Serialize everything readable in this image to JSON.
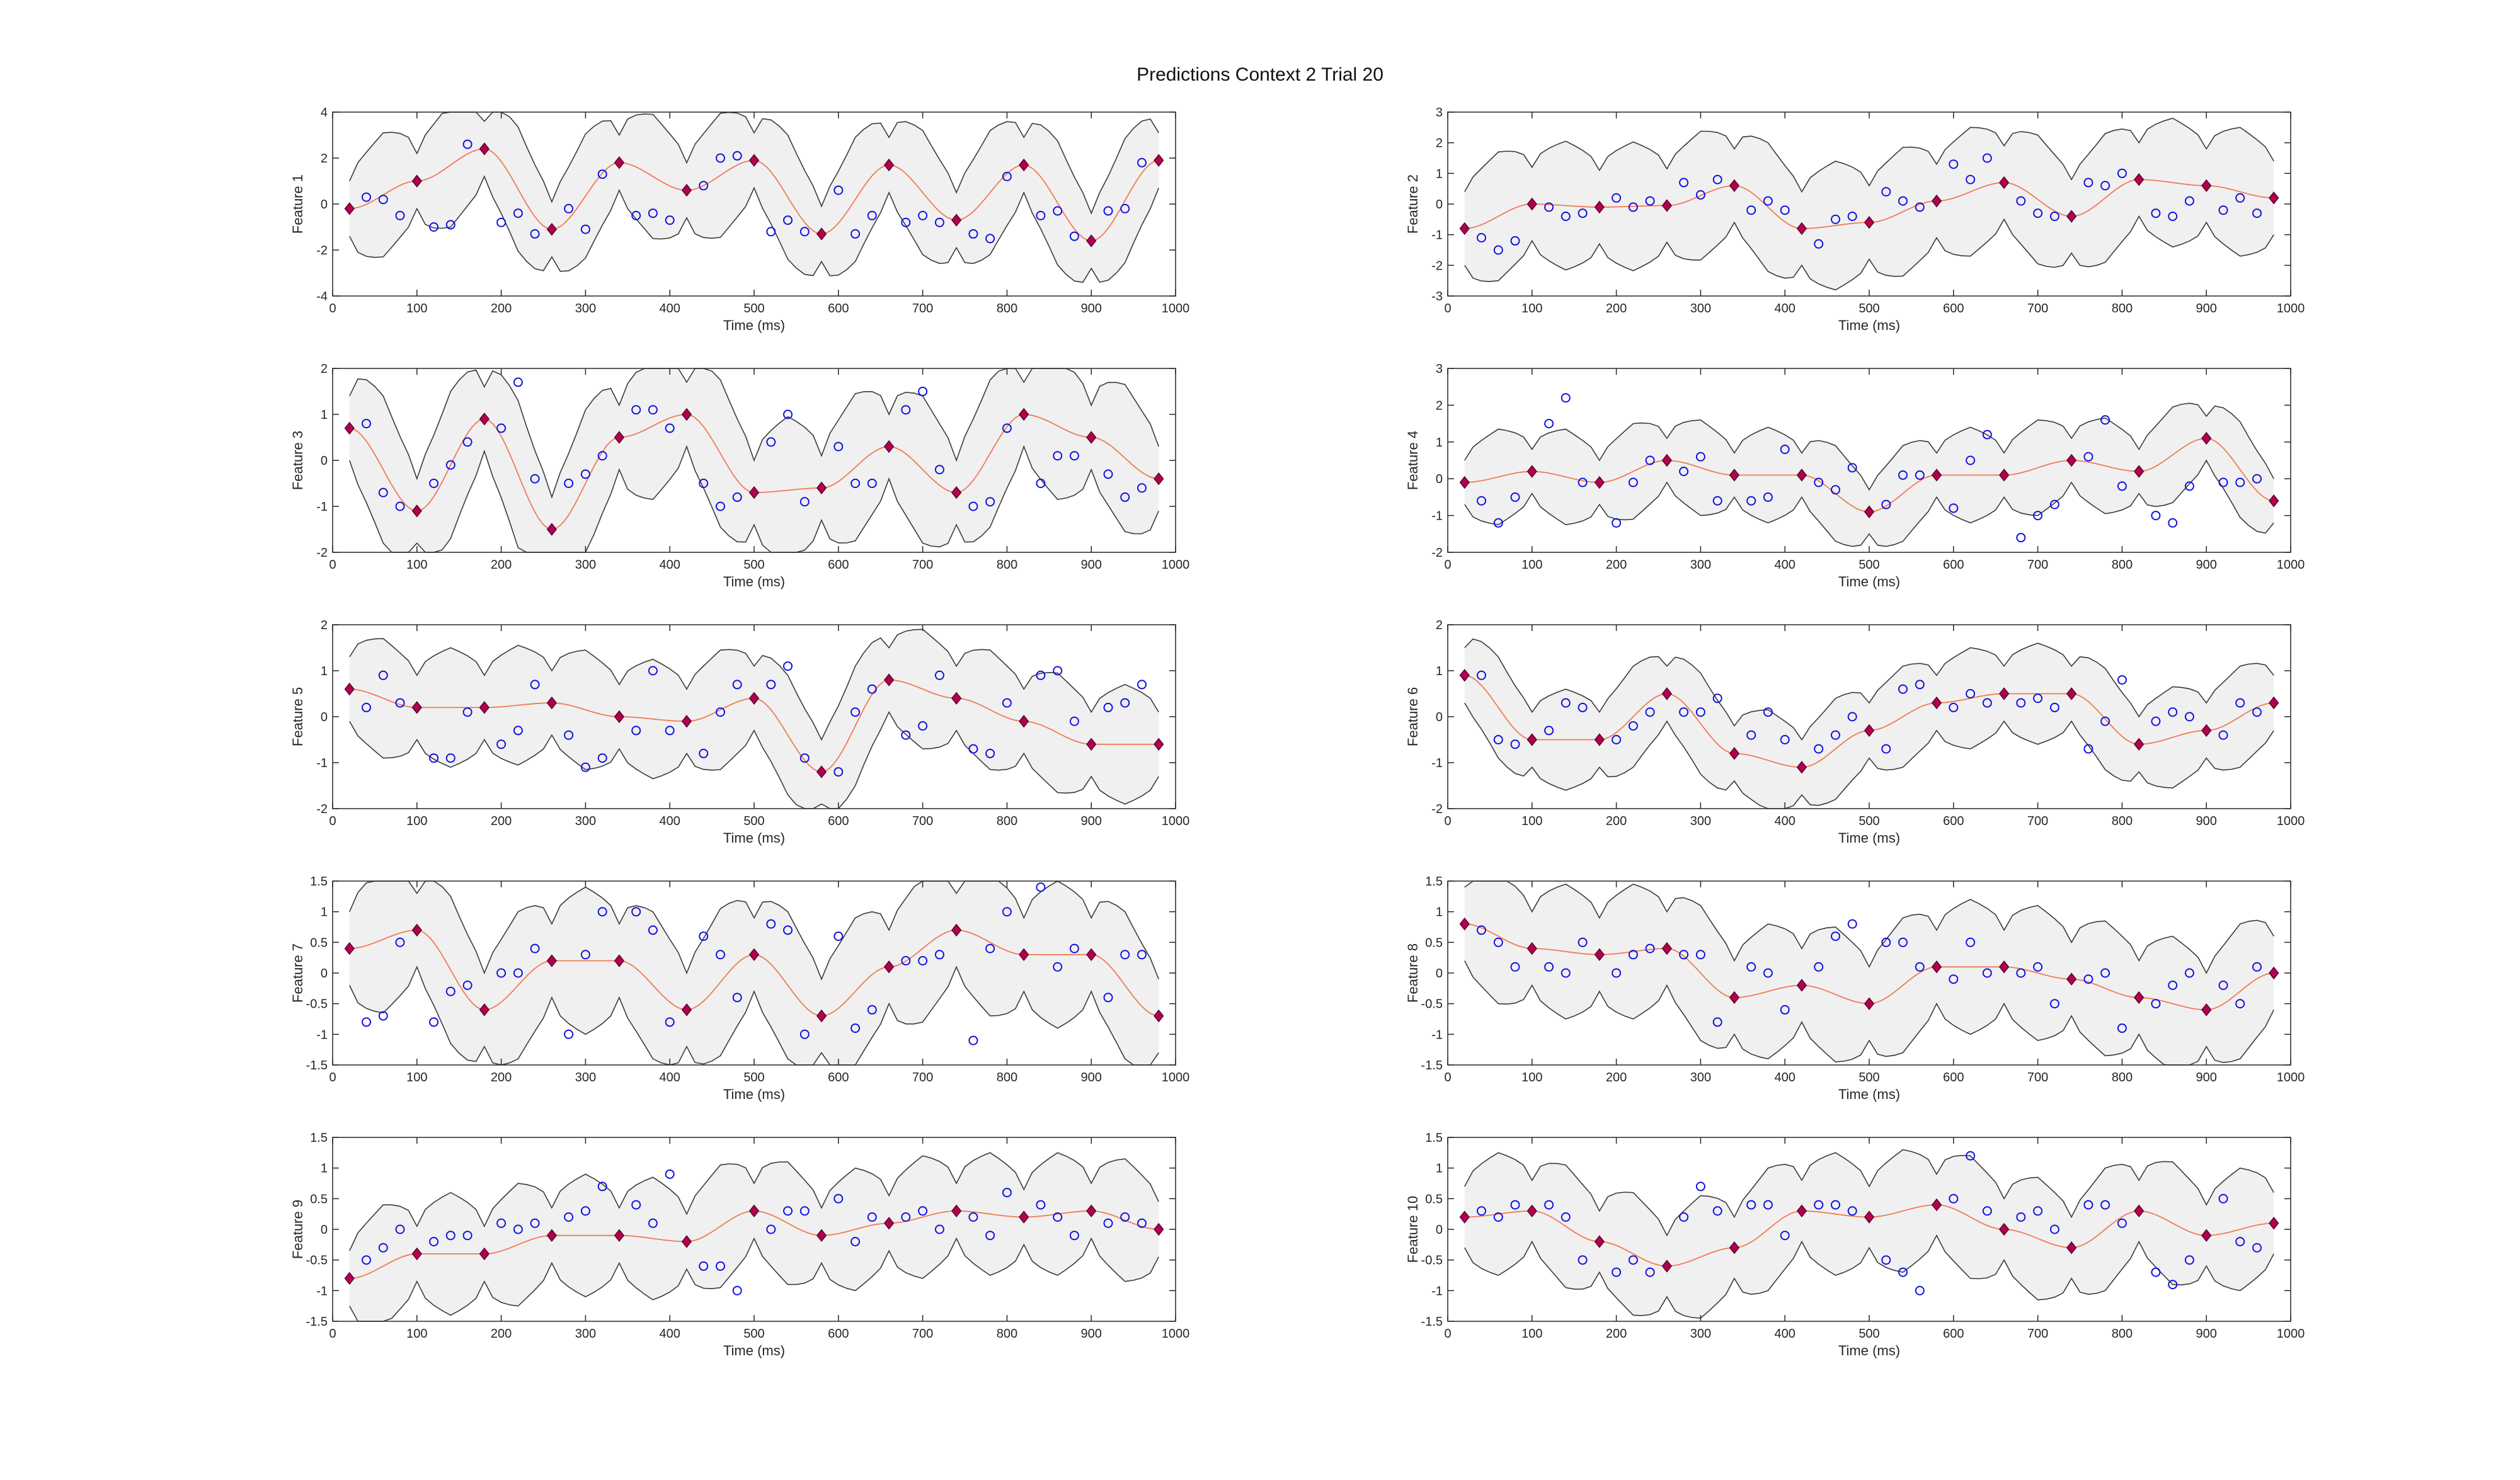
{
  "title": "Predictions Context 2 Trial 20",
  "colors": {
    "band_fill": "#f0f0f0",
    "band_edge": "#3a3a3a",
    "mean_line": "#f07a55",
    "observed": "#1010e0",
    "marker_fill": "#b3004d",
    "marker_edge": "#5a0030",
    "axes": "#262626"
  },
  "chart_data": [
    {
      "type": "line",
      "ylabel": "Feature 1",
      "xlabel": "Time (ms)",
      "xlim": [
        0,
        1000
      ],
      "ylim": [
        -4,
        4
      ],
      "xticks": [
        0,
        100,
        200,
        300,
        400,
        500,
        600,
        700,
        800,
        900,
        1000
      ],
      "yticks": [
        -4,
        -2,
        0,
        2,
        4
      ],
      "band_halfwidth_peak": 2.7,
      "band_halfwidth_trough": 1.2,
      "anchor_x": [
        20,
        100,
        180,
        260,
        340,
        420,
        500,
        580,
        660,
        740,
        820,
        900,
        980
      ],
      "anchors": [
        -0.2,
        1.0,
        2.4,
        -1.1,
        1.8,
        0.6,
        1.9,
        -1.3,
        1.7,
        -0.7,
        1.7,
        -1.6,
        1.9
      ],
      "obs_x": [
        40,
        60,
        80,
        120,
        140,
        160,
        200,
        220,
        240,
        280,
        300,
        320,
        360,
        380,
        400,
        440,
        460,
        480,
        520,
        540,
        560,
        600,
        620,
        640,
        680,
        700,
        720,
        760,
        780,
        800,
        840,
        860,
        880,
        920,
        940,
        960
      ],
      "obs_y": [
        0.3,
        0.2,
        -0.5,
        -1.0,
        -0.9,
        2.6,
        -0.8,
        -0.4,
        -1.3,
        -0.2,
        -1.1,
        1.3,
        -0.5,
        -0.4,
        -0.7,
        0.8,
        2.0,
        2.1,
        -1.2,
        -0.7,
        -1.2,
        0.6,
        -1.3,
        -0.5,
        -0.8,
        -0.5,
        -0.8,
        -1.3,
        -1.5,
        1.2,
        -0.5,
        -0.3,
        -1.4,
        -0.3,
        -0.2,
        1.8
      ]
    },
    {
      "type": "line",
      "ylabel": "Feature 2",
      "xlabel": "Time (ms)",
      "xlim": [
        0,
        1000
      ],
      "ylim": [
        -3,
        3
      ],
      "xticks": [
        0,
        100,
        200,
        300,
        400,
        500,
        600,
        700,
        800,
        900,
        1000
      ],
      "yticks": [
        -3,
        -2,
        -1,
        0,
        1,
        2,
        3
      ],
      "band_halfwidth_peak": 2.1,
      "band_halfwidth_trough": 1.2,
      "anchor_x": [
        20,
        100,
        180,
        260,
        340,
        420,
        500,
        580,
        660,
        740,
        820,
        900,
        980
      ],
      "anchors": [
        -0.8,
        0.0,
        -0.1,
        -0.05,
        0.6,
        -0.8,
        -0.6,
        0.1,
        0.7,
        -0.4,
        0.8,
        0.6,
        0.2
      ],
      "obs_x": [
        40,
        60,
        80,
        120,
        140,
        160,
        200,
        220,
        240,
        280,
        300,
        320,
        360,
        380,
        400,
        440,
        460,
        480,
        520,
        540,
        560,
        600,
        620,
        640,
        680,
        700,
        720,
        760,
        780,
        800,
        840,
        860,
        880,
        920,
        940,
        960
      ],
      "obs_y": [
        -1.1,
        -1.5,
        -1.2,
        -0.1,
        -0.4,
        -0.3,
        0.2,
        -0.1,
        0.1,
        0.7,
        0.3,
        0.8,
        -0.2,
        0.1,
        -0.2,
        -1.3,
        -0.5,
        -0.4,
        0.4,
        0.1,
        -0.1,
        1.3,
        0.8,
        1.5,
        0.1,
        -0.3,
        -0.4,
        0.7,
        0.6,
        1.0,
        -0.3,
        -0.4,
        0.1,
        -0.2,
        0.2,
        -0.3
      ]
    },
    {
      "type": "line",
      "ylabel": "Feature 3",
      "xlabel": "Time (ms)",
      "xlim": [
        0,
        1000
      ],
      "ylim": [
        -2,
        2
      ],
      "xticks": [
        0,
        100,
        200,
        300,
        400,
        500,
        600,
        700,
        800,
        900,
        1000
      ],
      "yticks": [
        -2,
        -1,
        0,
        1,
        2
      ],
      "band_halfwidth_peak": 1.6,
      "band_halfwidth_trough": 0.7,
      "anchor_x": [
        20,
        100,
        180,
        260,
        340,
        420,
        500,
        580,
        660,
        740,
        820,
        900,
        980
      ],
      "anchors": [
        0.7,
        -1.1,
        0.9,
        -1.5,
        0.5,
        1.0,
        -0.7,
        -0.6,
        0.3,
        -0.7,
        1.0,
        0.5,
        -0.4
      ],
      "obs_x": [
        40,
        60,
        80,
        120,
        140,
        160,
        200,
        220,
        240,
        280,
        300,
        320,
        360,
        380,
        400,
        440,
        460,
        480,
        520,
        540,
        560,
        600,
        620,
        640,
        680,
        700,
        720,
        760,
        780,
        800,
        840,
        860,
        880,
        920,
        940,
        960
      ],
      "obs_y": [
        0.8,
        -0.7,
        -1.0,
        -0.5,
        -0.1,
        0.4,
        0.7,
        1.7,
        -0.4,
        -0.5,
        -0.3,
        0.1,
        1.1,
        1.1,
        0.7,
        -0.5,
        -1.0,
        -0.8,
        0.4,
        1.0,
        -0.9,
        0.3,
        -0.5,
        -0.5,
        1.1,
        1.5,
        -0.2,
        -1.0,
        -0.9,
        0.7,
        -0.5,
        0.1,
        0.1,
        -0.3,
        -0.8,
        -0.6
      ]
    },
    {
      "type": "line",
      "ylabel": "Feature 4",
      "xlabel": "Time (ms)",
      "xlim": [
        0,
        1000
      ],
      "ylim": [
        -2,
        3
      ],
      "xticks": [
        0,
        100,
        200,
        300,
        400,
        500,
        600,
        700,
        800,
        900,
        1000
      ],
      "yticks": [
        -2,
        -1,
        0,
        1,
        2,
        3
      ],
      "band_halfwidth_peak": 1.3,
      "band_halfwidth_trough": 0.6,
      "anchor_x": [
        20,
        100,
        180,
        260,
        340,
        420,
        500,
        580,
        660,
        740,
        820,
        900,
        980
      ],
      "anchors": [
        -0.1,
        0.2,
        -0.1,
        0.5,
        0.1,
        0.1,
        -0.9,
        0.1,
        0.1,
        0.5,
        0.2,
        1.1,
        -0.6
      ],
      "obs_x": [
        40,
        60,
        80,
        120,
        140,
        160,
        200,
        220,
        240,
        280,
        300,
        320,
        360,
        380,
        400,
        440,
        460,
        480,
        520,
        540,
        560,
        600,
        620,
        640,
        680,
        700,
        720,
        760,
        780,
        800,
        840,
        860,
        880,
        920,
        940,
        960
      ],
      "obs_y": [
        -0.6,
        -1.2,
        -0.5,
        1.5,
        2.2,
        -0.1,
        -1.2,
        -0.1,
        0.5,
        0.2,
        0.6,
        -0.6,
        -0.6,
        -0.5,
        0.8,
        -0.1,
        -0.3,
        0.3,
        -0.7,
        0.1,
        0.1,
        -0.8,
        0.5,
        1.2,
        -1.6,
        -1.0,
        -0.7,
        0.6,
        1.6,
        -0.2,
        -1.0,
        -1.2,
        -0.2,
        -0.1,
        -0.1,
        0.0
      ]
    },
    {
      "type": "line",
      "ylabel": "Feature 5",
      "xlabel": "Time (ms)",
      "xlim": [
        0,
        1000
      ],
      "ylim": [
        -2,
        2
      ],
      "xticks": [
        0,
        100,
        200,
        300,
        400,
        500,
        600,
        700,
        800,
        900,
        1000
      ],
      "yticks": [
        -2,
        -1,
        0,
        1,
        2
      ],
      "band_halfwidth_peak": 1.3,
      "band_halfwidth_trough": 0.7,
      "anchor_x": [
        20,
        100,
        180,
        260,
        340,
        420,
        500,
        580,
        660,
        740,
        820,
        900,
        980
      ],
      "anchors": [
        0.6,
        0.2,
        0.2,
        0.3,
        0.0,
        -0.1,
        0.4,
        -1.2,
        0.8,
        0.4,
        -0.1,
        -0.6,
        -0.6
      ],
      "obs_x": [
        40,
        60,
        80,
        120,
        140,
        160,
        200,
        220,
        240,
        280,
        300,
        320,
        360,
        380,
        400,
        440,
        460,
        480,
        520,
        540,
        560,
        600,
        620,
        640,
        680,
        700,
        720,
        760,
        780,
        800,
        840,
        860,
        880,
        920,
        940,
        960
      ],
      "obs_y": [
        0.2,
        0.9,
        0.3,
        -0.9,
        -0.9,
        0.1,
        -0.6,
        -0.3,
        0.7,
        -0.4,
        -1.1,
        -0.9,
        -0.3,
        1.0,
        -0.3,
        -0.8,
        0.1,
        0.7,
        0.7,
        1.1,
        -0.9,
        -1.2,
        0.1,
        0.6,
        -0.4,
        -0.2,
        0.9,
        -0.7,
        -0.8,
        0.3,
        0.9,
        1.0,
        -0.1,
        0.2,
        0.3,
        0.7
      ]
    },
    {
      "type": "line",
      "ylabel": "Feature 6",
      "xlabel": "Time (ms)",
      "xlim": [
        0,
        1000
      ],
      "ylim": [
        -2,
        2
      ],
      "xticks": [
        0,
        100,
        200,
        300,
        400,
        500,
        600,
        700,
        800,
        900,
        1000
      ],
      "yticks": [
        -2,
        -1,
        0,
        1,
        2
      ],
      "band_halfwidth_peak": 1.1,
      "band_halfwidth_trough": 0.6,
      "anchor_x": [
        20,
        100,
        180,
        260,
        340,
        420,
        500,
        580,
        660,
        740,
        820,
        900,
        980
      ],
      "anchors": [
        0.9,
        -0.5,
        -0.5,
        0.5,
        -0.8,
        -1.1,
        -0.3,
        0.3,
        0.5,
        0.5,
        -0.6,
        -0.3,
        0.3
      ],
      "obs_x": [
        40,
        60,
        80,
        120,
        140,
        160,
        200,
        220,
        240,
        280,
        300,
        320,
        360,
        380,
        400,
        440,
        460,
        480,
        520,
        540,
        560,
        600,
        620,
        640,
        680,
        700,
        720,
        760,
        780,
        800,
        840,
        860,
        880,
        920,
        940,
        960
      ],
      "obs_y": [
        0.9,
        -0.5,
        -0.6,
        -0.3,
        0.3,
        0.2,
        -0.5,
        -0.2,
        0.1,
        0.1,
        0.1,
        0.4,
        -0.4,
        0.1,
        -0.5,
        -0.7,
        -0.4,
        0.0,
        -0.7,
        0.6,
        0.7,
        0.2,
        0.5,
        0.3,
        0.3,
        0.4,
        0.2,
        -0.7,
        -0.1,
        0.8,
        -0.1,
        0.1,
        0.0,
        -0.4,
        0.3,
        0.1
      ]
    },
    {
      "type": "line",
      "ylabel": "Feature 7",
      "xlabel": "Time (ms)",
      "xlim": [
        0,
        1000
      ],
      "ylim": [
        -1.5,
        1.5
      ],
      "xticks": [
        0,
        100,
        200,
        300,
        400,
        500,
        600,
        700,
        800,
        900,
        1000
      ],
      "yticks": [
        -1.5,
        -1,
        -0.5,
        0,
        0.5,
        1,
        1.5
      ],
      "band_halfwidth_peak": 1.2,
      "band_halfwidth_trough": 0.6,
      "anchor_x": [
        20,
        100,
        180,
        260,
        340,
        420,
        500,
        580,
        660,
        740,
        820,
        900,
        980
      ],
      "anchors": [
        0.4,
        0.7,
        -0.6,
        0.2,
        0.2,
        -0.6,
        0.3,
        -0.7,
        0.1,
        0.7,
        0.3,
        0.3,
        -0.7
      ],
      "obs_x": [
        40,
        60,
        80,
        120,
        140,
        160,
        200,
        220,
        240,
        280,
        300,
        320,
        360,
        380,
        400,
        440,
        460,
        480,
        520,
        540,
        560,
        600,
        620,
        640,
        680,
        700,
        720,
        760,
        780,
        800,
        840,
        860,
        880,
        920,
        940,
        960
      ],
      "obs_y": [
        -0.8,
        -0.7,
        0.5,
        -0.8,
        -0.3,
        -0.2,
        0.0,
        0.0,
        0.4,
        -1.0,
        0.3,
        1.0,
        1.0,
        0.7,
        -0.8,
        0.6,
        0.3,
        -0.4,
        0.8,
        0.7,
        -1.0,
        0.6,
        -0.9,
        -0.6,
        0.2,
        0.2,
        0.3,
        -1.1,
        0.4,
        1.0,
        1.4,
        0.1,
        0.4,
        -0.4,
        0.3,
        0.3
      ]
    },
    {
      "type": "line",
      "ylabel": "Feature 8",
      "xlabel": "Time (ms)",
      "xlim": [
        0,
        1000
      ],
      "ylim": [
        -1.5,
        1.5
      ],
      "xticks": [
        0,
        100,
        200,
        300,
        400,
        500,
        600,
        700,
        800,
        900,
        1000
      ],
      "yticks": [
        -1.5,
        -1,
        -0.5,
        0,
        0.5,
        1,
        1.5
      ],
      "band_halfwidth_peak": 1.1,
      "band_halfwidth_trough": 0.6,
      "anchor_x": [
        20,
        100,
        180,
        260,
        340,
        420,
        500,
        580,
        660,
        740,
        820,
        900,
        980
      ],
      "anchors": [
        0.8,
        0.4,
        0.3,
        0.4,
        -0.4,
        -0.2,
        -0.5,
        0.1,
        0.1,
        -0.1,
        -0.4,
        -0.6,
        0.0
      ],
      "obs_x": [
        40,
        60,
        80,
        120,
        140,
        160,
        200,
        220,
        240,
        280,
        300,
        320,
        360,
        380,
        400,
        440,
        460,
        480,
        520,
        540,
        560,
        600,
        620,
        640,
        680,
        700,
        720,
        760,
        780,
        800,
        840,
        860,
        880,
        920,
        940,
        960
      ],
      "obs_y": [
        0.7,
        0.5,
        0.1,
        0.1,
        0.0,
        0.5,
        0.0,
        0.3,
        0.4,
        0.3,
        0.3,
        -0.8,
        0.1,
        0.0,
        -0.6,
        0.1,
        0.6,
        0.8,
        0.5,
        0.5,
        0.1,
        -0.1,
        0.5,
        0.0,
        0.0,
        0.1,
        -0.5,
        -0.1,
        0.0,
        -0.9,
        -0.5,
        -0.2,
        0.0,
        -0.2,
        -0.5,
        0.1
      ]
    },
    {
      "type": "line",
      "ylabel": "Feature 9",
      "xlabel": "Time (ms)",
      "xlim": [
        0,
        1000
      ],
      "ylim": [
        -1.5,
        1.5
      ],
      "xticks": [
        0,
        100,
        200,
        300,
        400,
        500,
        600,
        700,
        800,
        900,
        1000
      ],
      "yticks": [
        -1.5,
        -1,
        -0.5,
        0,
        0.5,
        1,
        1.5
      ],
      "band_halfwidth_peak": 1.0,
      "band_halfwidth_trough": 0.45,
      "anchor_x": [
        20,
        100,
        180,
        260,
        340,
        420,
        500,
        580,
        660,
        740,
        820,
        900,
        980
      ],
      "anchors": [
        -0.8,
        -0.4,
        -0.4,
        -0.1,
        -0.1,
        -0.2,
        0.3,
        -0.1,
        0.1,
        0.3,
        0.2,
        0.3,
        0.0
      ],
      "obs_x": [
        40,
        60,
        80,
        120,
        140,
        160,
        200,
        220,
        240,
        280,
        300,
        320,
        360,
        380,
        400,
        440,
        460,
        480,
        520,
        540,
        560,
        600,
        620,
        640,
        680,
        700,
        720,
        760,
        780,
        800,
        840,
        860,
        880,
        920,
        940,
        960
      ],
      "obs_y": [
        -0.5,
        -0.3,
        0.0,
        -0.2,
        -0.1,
        -0.1,
        0.1,
        0.0,
        0.1,
        0.2,
        0.3,
        0.7,
        0.4,
        0.1,
        0.9,
        -0.6,
        -0.6,
        -1.0,
        0.0,
        0.3,
        0.3,
        0.5,
        -0.2,
        0.2,
        0.2,
        0.3,
        0.0,
        0.2,
        -0.1,
        0.6,
        0.4,
        0.2,
        -0.1,
        0.1,
        0.2,
        0.1
      ]
    },
    {
      "type": "line",
      "ylabel": "Feature 10",
      "xlabel": "Time (ms)",
      "xlim": [
        0,
        1000
      ],
      "ylim": [
        -1.5,
        1.5
      ],
      "xticks": [
        0,
        100,
        200,
        300,
        400,
        500,
        600,
        700,
        800,
        900,
        1000
      ],
      "yticks": [
        -1.5,
        -1,
        -0.5,
        0,
        0.5,
        1,
        1.5
      ],
      "band_halfwidth_peak": 1.0,
      "band_halfwidth_trough": 0.5,
      "anchor_x": [
        20,
        100,
        180,
        260,
        340,
        420,
        500,
        580,
        660,
        740,
        820,
        900,
        980
      ],
      "anchors": [
        0.2,
        0.3,
        -0.2,
        -0.6,
        -0.3,
        0.3,
        0.2,
        0.4,
        0.0,
        -0.3,
        0.3,
        -0.1,
        0.1
      ],
      "obs_x": [
        40,
        60,
        80,
        120,
        140,
        160,
        200,
        220,
        240,
        280,
        300,
        320,
        360,
        380,
        400,
        440,
        460,
        480,
        520,
        540,
        560,
        600,
        620,
        640,
        680,
        700,
        720,
        760,
        780,
        800,
        840,
        860,
        880,
        920,
        940,
        960
      ],
      "obs_y": [
        0.3,
        0.2,
        0.4,
        0.4,
        0.2,
        -0.5,
        -0.7,
        -0.5,
        -0.7,
        0.2,
        0.7,
        0.3,
        0.4,
        0.4,
        -0.1,
        0.4,
        0.4,
        0.3,
        -0.5,
        -0.7,
        -1.0,
        0.5,
        1.2,
        0.3,
        0.2,
        0.3,
        0.0,
        0.4,
        0.4,
        0.1,
        -0.7,
        -0.9,
        -0.5,
        0.5,
        -0.2,
        -0.3
      ]
    }
  ]
}
